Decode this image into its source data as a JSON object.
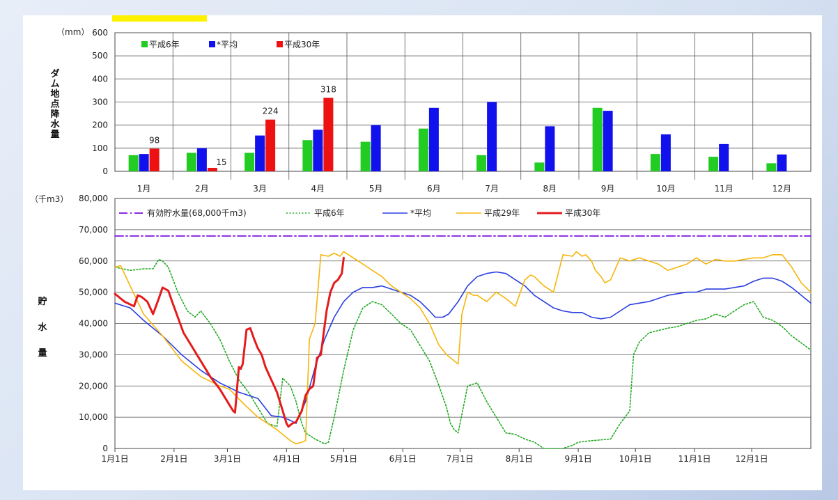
{
  "chart_data": [
    {
      "type": "bar",
      "unit_label": "（mm）",
      "ylabel": "ダム地点降水量",
      "ylim": [
        0,
        600
      ],
      "yticks": [
        0,
        100,
        200,
        300,
        400,
        500,
        600
      ],
      "categories": [
        "1月",
        "2月",
        "3月",
        "4月",
        "5月",
        "6月",
        "7月",
        "8月",
        "9月",
        "10月",
        "11月",
        "12月"
      ],
      "legend_position": "top-left",
      "series": [
        {
          "name": "平成6年",
          "color": "#22cc22",
          "values": [
            70,
            80,
            80,
            135,
            128,
            185,
            70,
            38,
            275,
            75,
            63,
            35
          ]
        },
        {
          "name": "*平均",
          "color": "#1111ee",
          "values": [
            75,
            100,
            155,
            180,
            200,
            275,
            300,
            195,
            262,
            160,
            118,
            73
          ]
        },
        {
          "name": "平成30年",
          "color": "#ee1111",
          "values": [
            98,
            15,
            224,
            318,
            null,
            null,
            null,
            null,
            null,
            null,
            null,
            null
          ]
        }
      ],
      "data_labels": [
        {
          "series": 2,
          "index": 0,
          "text": "98"
        },
        {
          "series": 2,
          "index": 1,
          "text": "15"
        },
        {
          "series": 2,
          "index": 2,
          "text": "224"
        },
        {
          "series": 2,
          "index": 3,
          "text": "318"
        }
      ]
    },
    {
      "type": "line",
      "unit_label": "（千m3）",
      "ylabel": "貯水量",
      "ylim": [
        0,
        80000
      ],
      "yticks": [
        0,
        10000,
        20000,
        30000,
        40000,
        50000,
        60000,
        70000,
        80000
      ],
      "ytick_labels": [
        "0",
        "10,000",
        "20,000",
        "30,000",
        "40,000",
        "50,000",
        "60,000",
        "70,000",
        "80,000"
      ],
      "xlim": [
        0,
        365
      ],
      "xticks": [
        0,
        31,
        59,
        90,
        120,
        151,
        181,
        212,
        243,
        273,
        304,
        334
      ],
      "xtick_labels": [
        "1月1日",
        "2月1日",
        "3月1日",
        "4月1日",
        "5月1日",
        "6月1日",
        "7月1日",
        "8月1日",
        "9月1日",
        "10月1日",
        "11月1日",
        "12月1日"
      ],
      "legend_position": "top",
      "series": [
        {
          "name": "有効貯水量(68,000千m3)",
          "color": "#8a2be2",
          "style": "dashdot",
          "width": 2,
          "x": [
            0,
            365
          ],
          "y": [
            68000,
            68000
          ]
        },
        {
          "name": "平成6年",
          "color": "#22aa22",
          "style": "dotted",
          "width": 1.6,
          "x": [
            0,
            8,
            15,
            20,
            23,
            25,
            28,
            33,
            38,
            42,
            45,
            50,
            55,
            60,
            65,
            70,
            76,
            80,
            85,
            88,
            92,
            95,
            98,
            100,
            105,
            110,
            112,
            115,
            120,
            125,
            130,
            135,
            140,
            145,
            150,
            155,
            160,
            165,
            170,
            174,
            176,
            178,
            180,
            185,
            190,
            195,
            200,
            205,
            210,
            215,
            220,
            225,
            230,
            235,
            240,
            243,
            250,
            260,
            265,
            270,
            272,
            275,
            280,
            290,
            295,
            300,
            305,
            310,
            315,
            320,
            325,
            330,
            335,
            340,
            345,
            350,
            355,
            365
          ],
          "y": [
            58000,
            57000,
            57500,
            57500,
            60500,
            60000,
            58000,
            50000,
            44000,
            42000,
            44000,
            40000,
            35000,
            28000,
            22000,
            18000,
            12000,
            8000,
            7000,
            22500,
            20000,
            15000,
            8000,
            5000,
            3000,
            1500,
            2000,
            10000,
            25000,
            38000,
            45000,
            47000,
            46000,
            43000,
            40000,
            38000,
            33000,
            28000,
            20000,
            13000,
            8000,
            6000,
            5000,
            20000,
            21000,
            15000,
            10000,
            5000,
            4500,
            3000,
            2000,
            0,
            0,
            0,
            1000,
            2000,
            2500,
            3000,
            8000,
            12000,
            30000,
            34000,
            37000,
            38500,
            39000,
            40000,
            41000,
            41500,
            43000,
            42000,
            44000,
            46000,
            47000,
            42000,
            41000,
            39000,
            36000,
            31500
          ]
        },
        {
          "name": "*平均",
          "color": "#2a3fe0",
          "style": "solid",
          "width": 1.6,
          "x": [
            0,
            8,
            15,
            25,
            35,
            45,
            55,
            65,
            75,
            82,
            88,
            92,
            95,
            100,
            105,
            110,
            115,
            120,
            125,
            130,
            135,
            140,
            145,
            150,
            155,
            160,
            165,
            168,
            172,
            175,
            180,
            185,
            190,
            195,
            200,
            205,
            210,
            215,
            220,
            225,
            230,
            235,
            240,
            245,
            250,
            255,
            260,
            265,
            270,
            280,
            285,
            290,
            300,
            305,
            310,
            315,
            320,
            330,
            335,
            340,
            345,
            350,
            355,
            365
          ],
          "y": [
            46500,
            45000,
            41000,
            36000,
            30000,
            25000,
            21000,
            18000,
            16000,
            10500,
            10000,
            9000,
            8000,
            15000,
            26000,
            35000,
            42000,
            47000,
            50000,
            51500,
            51500,
            52000,
            51000,
            50000,
            49000,
            47000,
            44000,
            42000,
            42000,
            43000,
            47000,
            52000,
            55000,
            56000,
            56500,
            56000,
            54000,
            52000,
            49000,
            47000,
            45000,
            44000,
            43500,
            43500,
            42000,
            41500,
            42000,
            44000,
            46000,
            47000,
            48000,
            49000,
            50000,
            50000,
            51000,
            51000,
            51000,
            52000,
            53500,
            54500,
            54500,
            53500,
            51500,
            46500
          ]
        },
        {
          "name": "平成29年",
          "color": "#f5b50a",
          "style": "solid",
          "width": 1.6,
          "x": [
            0,
            3,
            8,
            15,
            25,
            35,
            45,
            55,
            60,
            68,
            75,
            80,
            85,
            92,
            95,
            98,
            100,
            102,
            105,
            108,
            112,
            115,
            118,
            120,
            125,
            130,
            135,
            140,
            145,
            150,
            155,
            160,
            165,
            170,
            174,
            178,
            180,
            182,
            185,
            188,
            190,
            195,
            200,
            205,
            210,
            215,
            218,
            220,
            225,
            230,
            235,
            240,
            242,
            245,
            247,
            250,
            252,
            255,
            257,
            260,
            265,
            270,
            275,
            280,
            285,
            290,
            295,
            300,
            305,
            310,
            315,
            320,
            325,
            330,
            335,
            340,
            345,
            350,
            355,
            360,
            365
          ],
          "y": [
            58000,
            58500,
            52000,
            43000,
            36000,
            28000,
            23000,
            20000,
            19000,
            14000,
            10000,
            8000,
            6000,
            2500,
            1500,
            2000,
            2500,
            35000,
            40000,
            62000,
            61500,
            62500,
            61500,
            63000,
            61000,
            59000,
            57000,
            55000,
            52000,
            50000,
            48000,
            45000,
            40000,
            33000,
            30000,
            28000,
            27000,
            43000,
            50000,
            49000,
            49000,
            47000,
            50000,
            48000,
            45500,
            54000,
            55500,
            55000,
            52000,
            50000,
            62000,
            61500,
            63000,
            61500,
            62000,
            60000,
            57000,
            55000,
            53000,
            54000,
            61000,
            60000,
            61000,
            60000,
            59000,
            57000,
            58000,
            59000,
            61000,
            59000,
            60500,
            60000,
            60000,
            60500,
            61000,
            61000,
            62000,
            62000,
            58000,
            53000,
            50000
          ]
        },
        {
          "name": "平成30年",
          "color": "#e41b1b",
          "style": "solid",
          "width": 3,
          "x": [
            0,
            5,
            10,
            12,
            14,
            17,
            20,
            23,
            25,
            28,
            30,
            33,
            36,
            40,
            43,
            46,
            50,
            55,
            58,
            60,
            62,
            63,
            65,
            66,
            67,
            69,
            71,
            73,
            75,
            77,
            79,
            82,
            85,
            88,
            90,
            91,
            93,
            95,
            98,
            100,
            102,
            104,
            106,
            108,
            111,
            113,
            115,
            117,
            119,
            120
          ],
          "y": [
            49500,
            47000,
            45500,
            49000,
            48500,
            47000,
            43000,
            48000,
            51500,
            50500,
            47000,
            42000,
            37000,
            33000,
            30000,
            27000,
            23000,
            19000,
            16000,
            14000,
            12000,
            11500,
            26000,
            25500,
            27000,
            38000,
            38500,
            35000,
            32000,
            30000,
            26000,
            22000,
            18000,
            12000,
            8000,
            7000,
            8000,
            8500,
            12000,
            17000,
            19000,
            20000,
            29000,
            30000,
            44000,
            50000,
            53000,
            54000,
            56000,
            61000
          ]
        }
      ]
    }
  ]
}
